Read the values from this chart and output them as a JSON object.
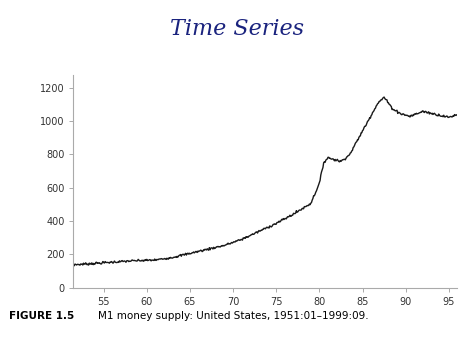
{
  "title": "Time Series",
  "title_color": "#1a237e",
  "title_fontsize": 16,
  "xlabel": "",
  "ylabel": "",
  "xlim": [
    51.5,
    96
  ],
  "ylim": [
    0,
    1280
  ],
  "xticks": [
    55,
    60,
    65,
    70,
    75,
    80,
    85,
    90,
    95
  ],
  "yticks": [
    0,
    200,
    400,
    600,
    800,
    1000,
    1200
  ],
  "line_color": "#1a1a1a",
  "line_width": 1.0,
  "background_color": "#ffffff",
  "header_bar_color": "#9090bb",
  "colorbar_colors": [
    "#22cc22",
    "#ddcc00",
    "#ee6600",
    "#9900cc",
    "#2222cc"
  ],
  "spine_color": "#aaaaaa",
  "tick_color": "#aaaaaa",
  "axis_bg": "#ffffff",
  "tick_fontsize": 7,
  "caption_bold": "FIGURE 1.5",
  "caption_normal": "    M1 money supply: United States, 1951:01–1999:09.",
  "caption_fontsize": 7.5
}
